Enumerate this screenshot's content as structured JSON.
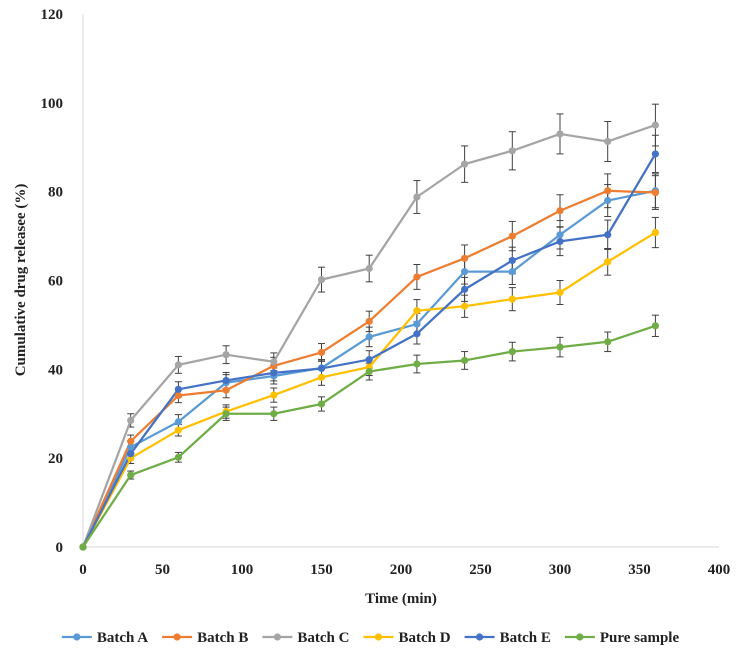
{
  "chart_data": {
    "type": "line",
    "title": "",
    "xlabel": "Time (min)",
    "ylabel": "Cumulative  drug  releasee (%)",
    "xlim": [
      0,
      400
    ],
    "ylim": [
      0,
      120
    ],
    "x_ticks": [
      0,
      50,
      100,
      150,
      200,
      250,
      300,
      350,
      400
    ],
    "y_ticks": [
      0,
      20,
      40,
      60,
      80,
      100,
      120
    ],
    "grid": false,
    "legend_position": "bottom",
    "x": [
      0,
      30,
      60,
      90,
      120,
      150,
      180,
      210,
      240,
      270,
      300,
      330,
      360
    ],
    "series": [
      {
        "name": "Batch A",
        "color": "#5B9BD5",
        "values": [
          0,
          22.5,
          28.2,
          37.0,
          38.5,
          40.3,
          47.3,
          50.2,
          62.0,
          62.0,
          70.3,
          78.0,
          80.2
        ],
        "error": [
          0,
          1.4,
          1.6,
          1.8,
          1.8,
          1.9,
          2.2,
          2.4,
          2.8,
          2.9,
          3.2,
          3.6,
          3.8
        ]
      },
      {
        "name": "Batch B",
        "color": "#ED7D31",
        "values": [
          0,
          23.8,
          34.1,
          35.3,
          40.8,
          43.8,
          50.8,
          60.8,
          65.0,
          70.0,
          75.7,
          80.2,
          79.8
        ],
        "error": [
          0,
          1.4,
          1.6,
          1.7,
          1.9,
          2.0,
          2.3,
          2.8,
          3.0,
          3.3,
          3.6,
          3.8,
          3.8
        ]
      },
      {
        "name": "Batch C",
        "color": "#A5A5A5",
        "values": [
          0,
          28.5,
          41.0,
          43.3,
          41.7,
          60.2,
          62.7,
          78.8,
          86.2,
          89.2,
          93.0,
          91.3,
          95.0
        ],
        "error": [
          0,
          1.5,
          1.9,
          2.0,
          2.0,
          2.8,
          3.0,
          3.7,
          4.1,
          4.3,
          4.5,
          4.5,
          4.7
        ]
      },
      {
        "name": "Batch D",
        "color": "#FFC000",
        "values": [
          0,
          20.0,
          26.3,
          30.5,
          34.2,
          38.2,
          40.5,
          53.2,
          54.2,
          55.8,
          57.3,
          64.2,
          70.8
        ],
        "error": [
          0,
          1.2,
          1.3,
          1.5,
          1.6,
          1.8,
          1.9,
          2.5,
          2.5,
          2.6,
          2.7,
          3.0,
          3.4
        ]
      },
      {
        "name": "Batch E",
        "color": "#4472C4",
        "values": [
          0,
          21.0,
          35.5,
          37.5,
          39.2,
          40.2,
          42.2,
          48.0,
          58.0,
          64.5,
          68.8,
          70.3,
          88.5
        ],
        "error": [
          0,
          1.2,
          1.7,
          1.8,
          1.8,
          1.9,
          2.0,
          2.3,
          2.7,
          3.0,
          3.2,
          3.3,
          4.2
        ]
      },
      {
        "name": "Pure sample",
        "color": "#70AD47",
        "values": [
          0,
          16.2,
          20.2,
          30.0,
          30.0,
          32.2,
          39.5,
          41.2,
          42.0,
          44.0,
          45.0,
          46.2,
          49.8
        ],
        "error": [
          0,
          0.9,
          1.1,
          1.5,
          1.5,
          1.6,
          1.9,
          2.0,
          2.0,
          2.1,
          2.2,
          2.2,
          2.4
        ]
      }
    ]
  }
}
